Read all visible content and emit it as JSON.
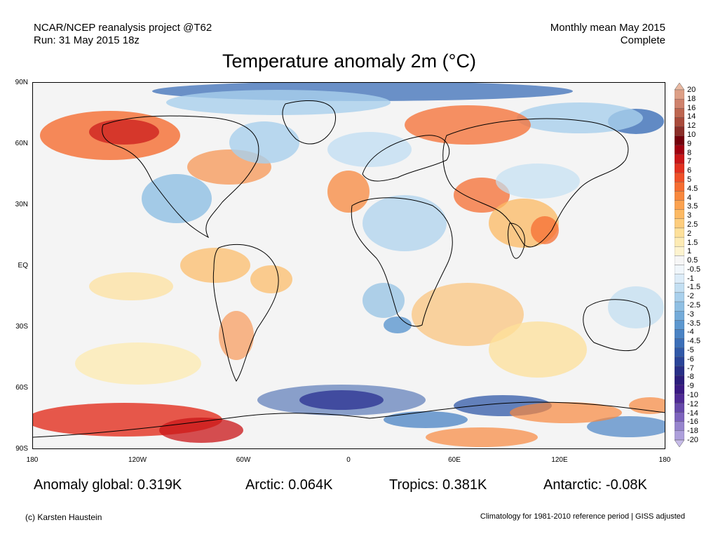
{
  "header": {
    "project": "NCAR/NCEP reanalysis project @T62",
    "run": "Run: 31 May 2015 18z",
    "period": "Monthly mean May 2015",
    "status": "Complete"
  },
  "title": "Temperature anomaly 2m (°C)",
  "map": {
    "lat_labels": [
      "90N",
      "60N",
      "30N",
      "EQ",
      "30S",
      "60S",
      "90S"
    ],
    "lon_labels": [
      "180",
      "120W",
      "60W",
      "0",
      "60E",
      "120E",
      "180"
    ],
    "colorbar_labels": [
      "20",
      "18",
      "16",
      "14",
      "12",
      "10",
      "9",
      "8",
      "7",
      "6",
      "5",
      "4.5",
      "4",
      "3.5",
      "3",
      "2.5",
      "2",
      "1.5",
      "1",
      "0.5",
      "-0.5",
      "-1",
      "-1.5",
      "-2",
      "-2.5",
      "-3",
      "-3.5",
      "-4",
      "-4.5",
      "-5",
      "-6",
      "-7",
      "-8",
      "-9",
      "-10",
      "-12",
      "-14",
      "-16",
      "-18",
      "-20"
    ],
    "colorbar_colors": [
      "#e9b9a2",
      "#dd9f86",
      "#cf826c",
      "#bd6650",
      "#a94b3b",
      "#8b2e28",
      "#74000b",
      "#a00010",
      "#c91618",
      "#e2301f",
      "#ef5028",
      "#f56d31",
      "#f8883d",
      "#fba24f",
      "#fcb963",
      "#fdcd7d",
      "#fde09a",
      "#fdebb4",
      "#fdf3cf",
      "#f6f6f6",
      "#f0f6fb",
      "#dcecf8",
      "#c3dff2",
      "#a9d0ec",
      "#8fbfe3",
      "#74abd9",
      "#5c97cf",
      "#4a83c4",
      "#3c6fb8",
      "#3159a8",
      "#2a4498",
      "#282f87",
      "#2b1d7b",
      "#3a1a83",
      "#4f2a95",
      "#6648aa",
      "#7d63bd",
      "#9684cd",
      "#ad9fdb",
      "#c6bbe8"
    ]
  },
  "stats": {
    "global": "Anomaly global: 0.319K",
    "arctic": "Arctic: 0.064K",
    "tropics": "Tropics: 0.381K",
    "antarctic": "Antarctic: -0.08K"
  },
  "footer": {
    "credit": "(c) Karsten Haustein",
    "note": "Climatology for 1981-2010 reference period | GISS adjusted"
  }
}
